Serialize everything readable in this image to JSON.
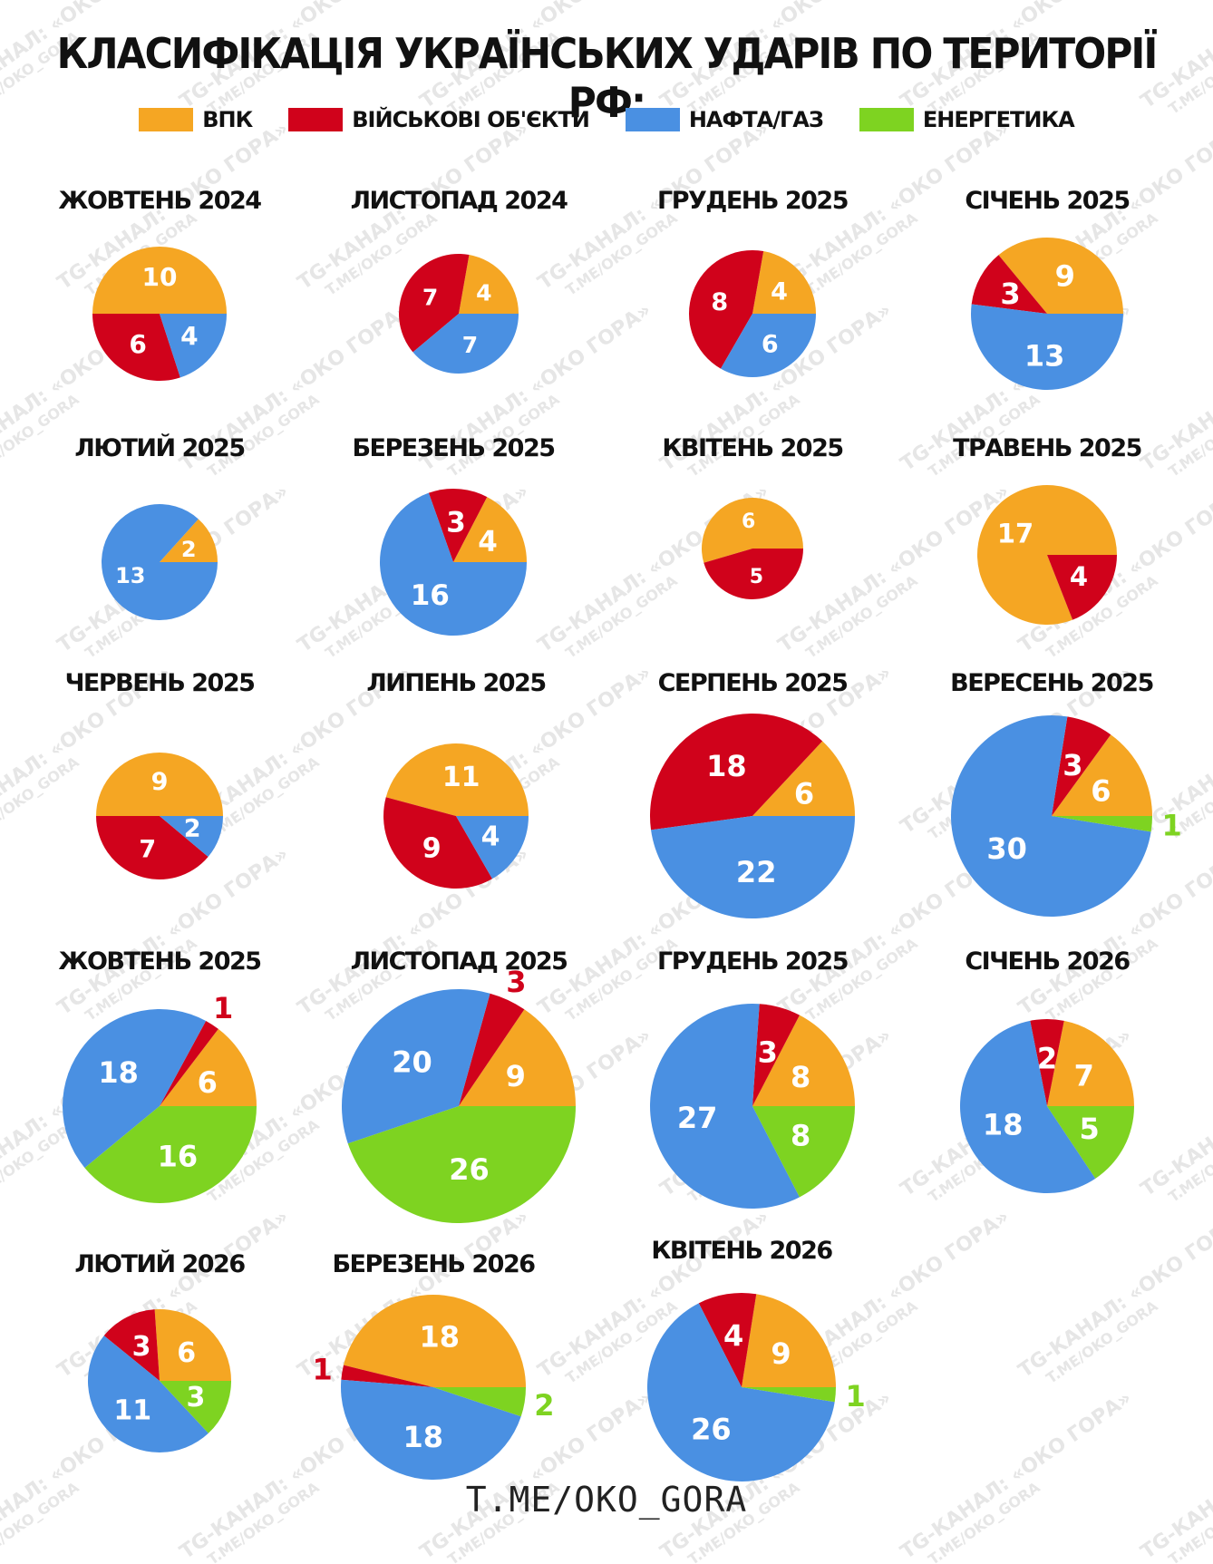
{
  "title": "КЛАСИФІКАЦІЯ УКРАЇНСЬКИХ УДАРІВ ПО ТЕРИТОРІЇ РФ:",
  "footer": "T.ME/OKO_GORA",
  "watermark": {
    "line1": "TG-КАНАЛ: «ОКО ГОРА»",
    "line2": "T.ME/OKO_GORA"
  },
  "colors": {
    "vpk": "#f5a623",
    "mil": "#d0021b",
    "oil": "#4a90e2",
    "energy": "#7ed321"
  },
  "legend": [
    {
      "key": "vpk",
      "label": "ВПК"
    },
    {
      "key": "mil",
      "label": "ВІЙСЬКОВІ ОБ'ЄКТИ"
    },
    {
      "key": "oil",
      "label": "НАФТА/ГАЗ"
    },
    {
      "key": "energy",
      "label": "ЕНЕРГЕТИКА"
    }
  ],
  "chart_data": [
    {
      "type": "pie",
      "title": "ЖОВТЕНЬ 2024",
      "values": {
        "vpk": 10,
        "mil": 6,
        "oil": 4,
        "energy": 0
      }
    },
    {
      "type": "pie",
      "title": "ЛИСТОПАД 2024",
      "values": {
        "vpk": 4,
        "mil": 7,
        "oil": 7,
        "energy": 0
      }
    },
    {
      "type": "pie",
      "title": "ГРУДЕНЬ 2025",
      "values": {
        "vpk": 4,
        "mil": 8,
        "oil": 6,
        "energy": 0
      }
    },
    {
      "type": "pie",
      "title": "СІЧЕНЬ 2025",
      "values": {
        "vpk": 9,
        "mil": 3,
        "oil": 13,
        "energy": 0
      }
    },
    {
      "type": "pie",
      "title": "ЛЮТИЙ 2025",
      "values": {
        "vpk": 2,
        "mil": 0,
        "oil": 13,
        "energy": 0
      }
    },
    {
      "type": "pie",
      "title": "БЕРЕЗЕНЬ 2025",
      "values": {
        "vpk": 4,
        "mil": 3,
        "oil": 16,
        "energy": 0
      }
    },
    {
      "type": "pie",
      "title": "КВІТЕНЬ 2025",
      "values": {
        "vpk": 6,
        "mil": 5,
        "oil": 0,
        "energy": 0
      }
    },
    {
      "type": "pie",
      "title": "ТРАВЕНЬ 2025",
      "values": {
        "vpk": 17,
        "mil": 4,
        "oil": 0,
        "energy": 0
      }
    },
    {
      "type": "pie",
      "title": "ЧЕРВЕНЬ 2025",
      "values": {
        "vpk": 9,
        "mil": 7,
        "oil": 2,
        "energy": 0
      }
    },
    {
      "type": "pie",
      "title": "ЛИПЕНЬ 2025",
      "values": {
        "vpk": 11,
        "mil": 9,
        "oil": 4,
        "energy": 0
      }
    },
    {
      "type": "pie",
      "title": "СЕРПЕНЬ 2025",
      "values": {
        "vpk": 6,
        "mil": 18,
        "oil": 22,
        "energy": 0
      }
    },
    {
      "type": "pie",
      "title": "ВЕРЕСЕНЬ 2025",
      "values": {
        "vpk": 6,
        "mil": 3,
        "oil": 30,
        "energy": 1
      }
    },
    {
      "type": "pie",
      "title": "ЖОВТЕНЬ 2025",
      "values": {
        "vpk": 6,
        "mil": 1,
        "oil": 18,
        "energy": 16
      }
    },
    {
      "type": "pie",
      "title": "ЛИСТОПАД 2025",
      "values": {
        "vpk": 9,
        "mil": 3,
        "oil": 20,
        "energy": 26
      }
    },
    {
      "type": "pie",
      "title": "ГРУДЕНЬ 2025",
      "values": {
        "vpk": 8,
        "mil": 3,
        "oil": 27,
        "energy": 8
      }
    },
    {
      "type": "pie",
      "title": "СІЧЕНЬ 2026",
      "values": {
        "vpk": 7,
        "mil": 2,
        "oil": 18,
        "energy": 5
      }
    },
    {
      "type": "pie",
      "title": "ЛЮТИЙ 2026",
      "values": {
        "vpk": 6,
        "mil": 3,
        "oil": 11,
        "energy": 3
      }
    },
    {
      "type": "pie",
      "title": "БЕРЕЗЕНЬ 2026",
      "values": {
        "vpk": 18,
        "mil": 1,
        "oil": 18,
        "energy": 2
      }
    },
    {
      "type": "pie",
      "title": "КВІТЕНЬ 2026",
      "values": {
        "vpk": 9,
        "mil": 4,
        "oil": 26,
        "energy": 1
      }
    }
  ]
}
